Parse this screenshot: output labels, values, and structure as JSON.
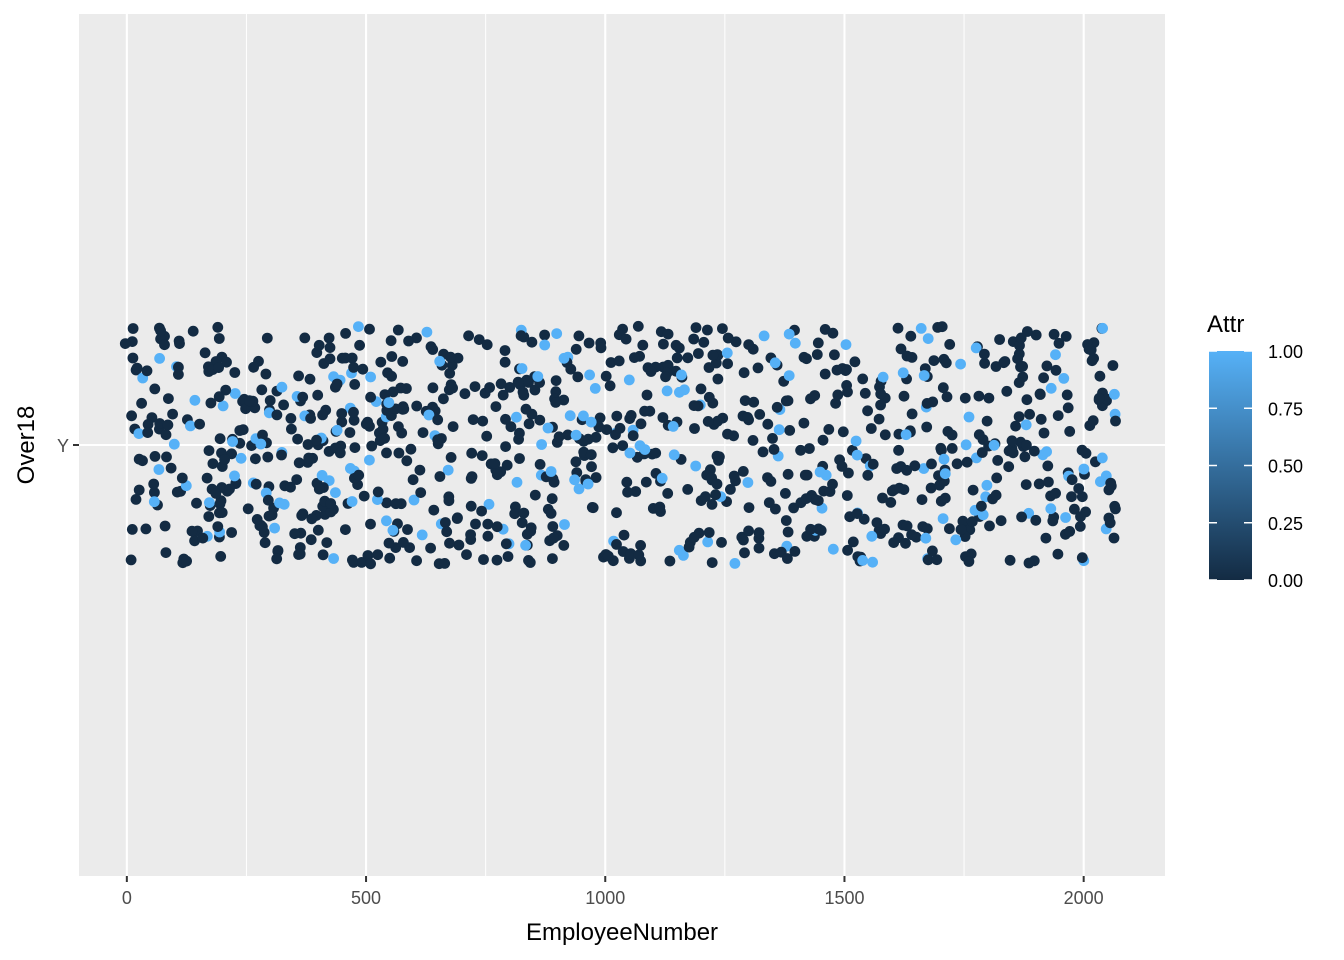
{
  "colors": {
    "panel_bg": "#EBEBEB",
    "grid": "#FFFFFF",
    "low": "#132B43",
    "high": "#56B1F7",
    "tick_text": "#4D4D4D",
    "tick_mark": "#333333"
  },
  "chart_data": {
    "type": "scatter",
    "geom": "jitter",
    "xlabel": "EmployeeNumber",
    "ylabel": "Over18",
    "xlim": [
      -100,
      2170
    ],
    "x_ticks": [
      0,
      500,
      1000,
      1500,
      2000
    ],
    "x_tick_labels": [
      "0",
      "500",
      "1000",
      "1500",
      "2000"
    ],
    "y_categories": [
      "Y"
    ],
    "grid": true,
    "legend": {
      "title": "Attr",
      "position": "right",
      "type": "colorbar",
      "range": [
        0,
        1
      ],
      "ticks": [
        0,
        0.25,
        0.5,
        0.75,
        1
      ],
      "tick_labels": [
        "0.00",
        "0.25",
        "0.50",
        "0.75",
        "1.00"
      ]
    },
    "jitter": {
      "n_points": 1050,
      "x_min": 1,
      "x_max": 2068,
      "y_spread": 0.4,
      "attr_share": 0.16,
      "seed": 1470
    }
  }
}
